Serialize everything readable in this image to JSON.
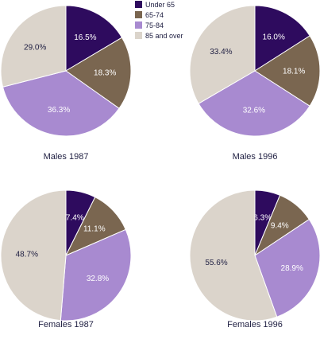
{
  "legend": [
    {
      "label": "Under 65",
      "color": "#2e0b5e"
    },
    {
      "label": "65-74",
      "color": "#7a6650"
    },
    {
      "label": "75-84",
      "color": "#a88ad0"
    },
    {
      "label": "85 and over",
      "color": "#dbd4cb"
    }
  ],
  "chart_data": [
    {
      "type": "pie",
      "title": "Males 1987",
      "categories": [
        "Under 65",
        "65-74",
        "75-84",
        "85 and over"
      ],
      "values": [
        16.5,
        18.3,
        36.3,
        29.0
      ],
      "labels": [
        "16.5%",
        "18.3%",
        "36.3%",
        "29.0%"
      ]
    },
    {
      "type": "pie",
      "title": "Males 1996",
      "categories": [
        "Under 65",
        "65-74",
        "75-84",
        "85 and over"
      ],
      "values": [
        16.0,
        18.1,
        32.6,
        33.4
      ],
      "labels": [
        "16.0%",
        "18.1%",
        "32.6%",
        "33.4%"
      ]
    },
    {
      "type": "pie",
      "title": "Females 1987",
      "categories": [
        "Under 65",
        "65-74",
        "75-84",
        "85 and over"
      ],
      "values": [
        7.4,
        11.1,
        32.8,
        48.7
      ],
      "labels": [
        "7.4%",
        "11.1%",
        "32.8%",
        "48.7%"
      ]
    },
    {
      "type": "pie",
      "title": "Females 1996",
      "categories": [
        "Under 65",
        "65-74",
        "75-84",
        "85 and over"
      ],
      "values": [
        6.3,
        9.4,
        28.9,
        55.6
      ],
      "labels": [
        "6.3%",
        "9.4%",
        "28.9%",
        "55.6%"
      ]
    }
  ]
}
